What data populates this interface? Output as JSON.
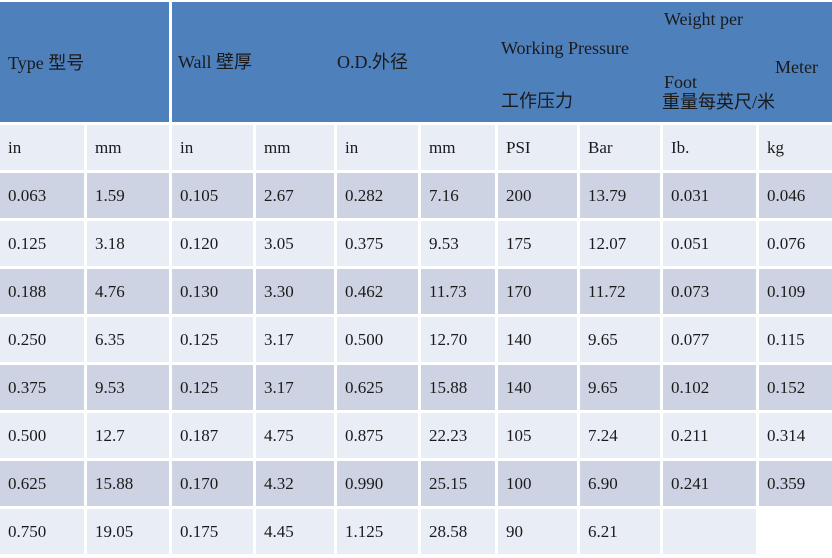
{
  "header": {
    "type_label": "Type 型号",
    "wall_label": "Wall 壁厚",
    "od_label": "O.D.外径",
    "working_pressure_en": "Working Pressure",
    "working_pressure_cn": "工作压力",
    "weight_per": "Weight per",
    "foot": "Foot",
    "meter": "Meter",
    "weight_cn": "重量每英尺/米"
  },
  "columns": [
    "in",
    "mm",
    "in",
    "mm",
    "in",
    "mm",
    "PSI",
    "Bar",
    "Ib.",
    "kg"
  ],
  "rows": [
    [
      "0.063",
      "1.59",
      "0.105",
      "2.67",
      "0.282",
      "7.16",
      "200",
      "13.79",
      "0.031",
      "0.046"
    ],
    [
      "0.125",
      "3.18",
      "0.120",
      "3.05",
      "0.375",
      "9.53",
      "175",
      "12.07",
      "0.051",
      "0.076"
    ],
    [
      "0.188",
      "4.76",
      "0.130",
      "3.30",
      "0.462",
      "11.73",
      "170",
      "11.72",
      "0.073",
      "0.109"
    ],
    [
      "0.250",
      "6.35",
      "0.125",
      "3.17",
      "0.500",
      "12.70",
      "140",
      "9.65",
      "0.077",
      "0.115"
    ],
    [
      "0.375",
      "9.53",
      "0.125",
      "3.17",
      "0.625",
      "15.88",
      "140",
      "9.65",
      "0.102",
      "0.152"
    ],
    [
      "0.500",
      "12.7",
      "0.187",
      "4.75",
      "0.875",
      "22.23",
      "105",
      "7.24",
      "0.211",
      "0.314"
    ],
    [
      "0.625",
      "15.88",
      "0.170",
      "4.32",
      "0.990",
      "25.15",
      "100",
      "6.90",
      "0.241",
      "0.359"
    ],
    [
      "0.750",
      "19.05",
      "0.175",
      "4.45",
      "1.125",
      "28.58",
      "90",
      "6.21",
      "",
      null
    ]
  ],
  "colors": {
    "header_bg": "#4e80bc",
    "row_dark": "#cdd3e3",
    "row_light": "#e9edf6",
    "grid_gap": "#ffffff",
    "text": "#1a1a1a"
  }
}
